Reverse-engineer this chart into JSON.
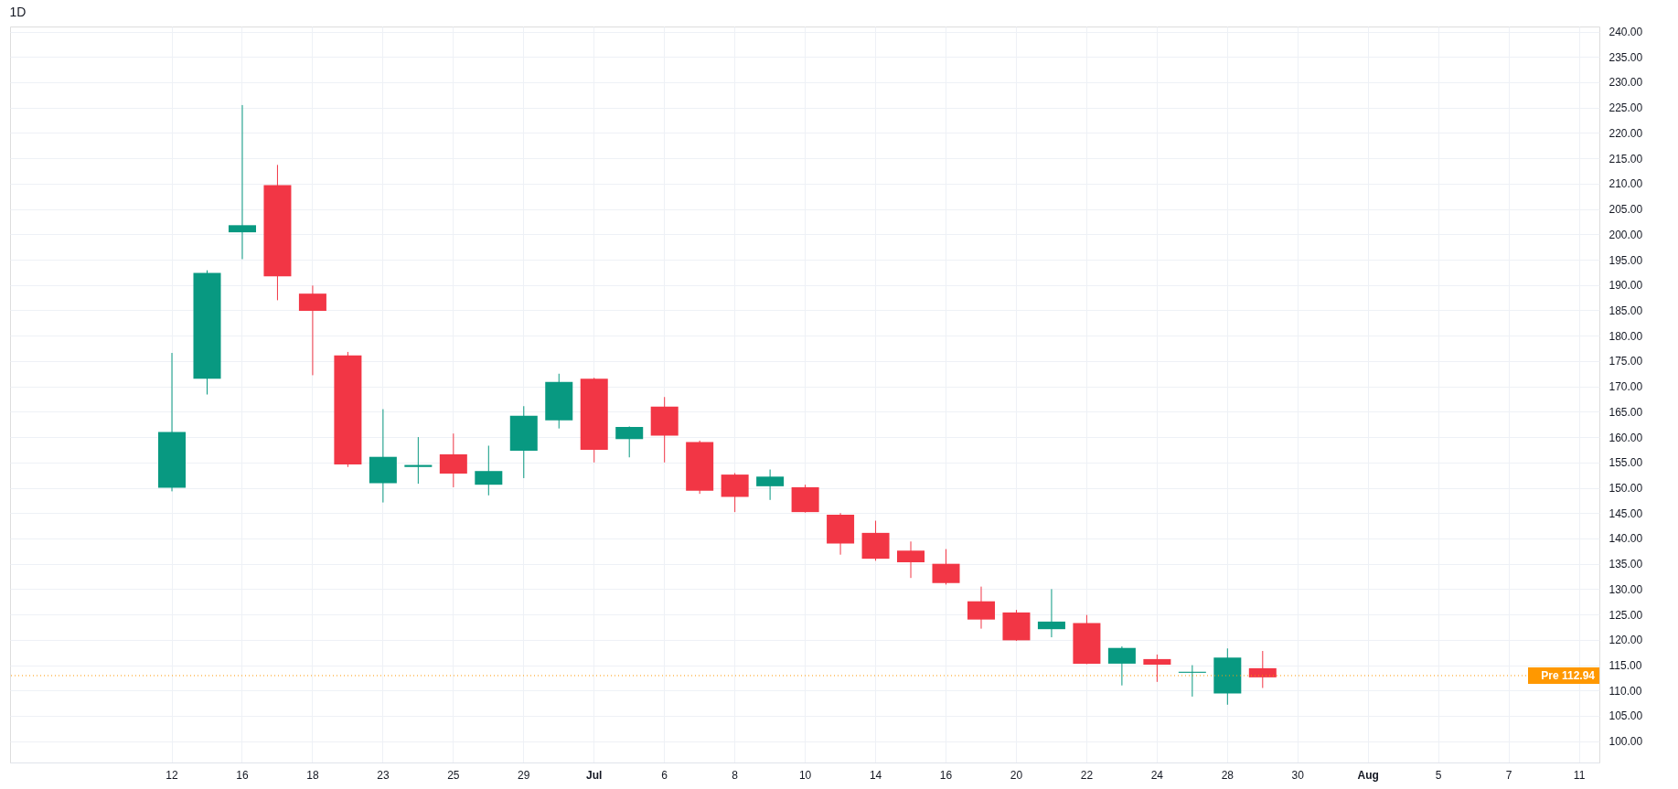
{
  "chart_data": {
    "type": "candlestick",
    "title": "1D",
    "categories": [
      "12",
      null,
      "16",
      null,
      "18",
      null,
      "23",
      null,
      "25",
      null,
      "29",
      null,
      "Jul",
      null,
      "6",
      null,
      "8",
      null,
      "10",
      null,
      "14",
      null,
      "16",
      null,
      "20",
      null,
      "22",
      null,
      "24",
      null,
      "28",
      null,
      "30",
      null,
      "Aug",
      null,
      "5",
      null,
      "7",
      null,
      "11"
    ],
    "ohlc": [
      [
        150.0,
        176.6,
        149.3,
        161.0
      ],
      [
        171.5,
        192.9,
        168.4,
        192.4
      ],
      [
        200.4,
        225.5,
        195.1,
        201.8
      ],
      [
        209.7,
        213.7,
        187.0,
        191.7
      ],
      [
        188.3,
        189.9,
        172.2,
        184.9
      ],
      [
        176.1,
        176.8,
        154.1,
        154.6
      ],
      [
        150.9,
        165.5,
        147.1,
        156.1
      ],
      [
        154.1,
        160.0,
        150.8,
        154.5
      ],
      [
        156.6,
        160.7,
        150.1,
        152.8
      ],
      [
        150.6,
        158.3,
        148.5,
        153.3
      ],
      [
        157.3,
        166.1,
        151.9,
        164.2
      ],
      [
        163.3,
        172.5,
        161.7,
        170.9
      ],
      [
        171.5,
        171.7,
        155.0,
        157.5
      ],
      [
        159.6,
        162.1,
        156.0,
        162.0
      ],
      [
        166.0,
        167.9,
        155.0,
        160.3
      ],
      [
        159.0,
        159.3,
        148.8,
        149.4
      ],
      [
        152.6,
        152.9,
        145.2,
        148.2
      ],
      [
        150.3,
        153.6,
        147.6,
        152.2
      ],
      [
        150.1,
        150.6,
        145.1,
        145.2
      ],
      [
        144.7,
        145.0,
        136.8,
        139.0
      ],
      [
        141.1,
        143.5,
        135.6,
        136.0
      ],
      [
        137.6,
        139.4,
        132.2,
        135.3
      ],
      [
        135.0,
        137.9,
        130.9,
        131.2
      ],
      [
        127.6,
        130.5,
        122.2,
        124.0
      ],
      [
        125.4,
        125.9,
        119.8,
        119.9
      ],
      [
        122.1,
        130.0,
        120.5,
        123.6
      ],
      [
        123.3,
        124.9,
        115.2,
        115.3
      ],
      [
        115.3,
        118.7,
        111.0,
        118.4
      ],
      [
        116.2,
        117.1,
        111.7,
        115.1
      ],
      [
        113.5,
        115.0,
        108.8,
        113.7
      ],
      [
        109.4,
        118.3,
        107.2,
        116.5
      ],
      [
        114.4,
        117.8,
        110.5,
        112.6
      ],
      null,
      null,
      null,
      null,
      null,
      null,
      null,
      null,
      null
    ],
    "colors": [
      "#089981",
      "#089981",
      "#089981",
      "#f23645",
      "#f23645",
      "#f23645",
      "#089981",
      "#089981",
      "#f23645",
      "#089981",
      "#089981",
      "#089981",
      "#f23645",
      "#089981",
      "#f23645",
      "#f23645",
      "#f23645",
      "#089981",
      "#f23645",
      "#f23645",
      "#f23645",
      "#f23645",
      "#f23645",
      "#f23645",
      "#f23645",
      "#089981",
      "#f23645",
      "#089981",
      "#f23645",
      "#089981",
      "#089981",
      "#f23645",
      null,
      null,
      null,
      null,
      null,
      null,
      null,
      null,
      null
    ],
    "ylim": [
      95.8,
      241.0
    ],
    "yticks": [
      {
        "value": 100,
        "label": "100.00"
      },
      {
        "value": 105,
        "label": "105.00"
      },
      {
        "value": 110,
        "label": "110.00"
      },
      {
        "value": 115,
        "label": "115.00"
      },
      {
        "value": 120,
        "label": "120.00"
      },
      {
        "value": 125,
        "label": "125.00"
      },
      {
        "value": 130,
        "label": "130.00"
      },
      {
        "value": 135,
        "label": "135.00"
      },
      {
        "value": 140,
        "label": "140.00"
      },
      {
        "value": 145,
        "label": "145.00"
      },
      {
        "value": 150,
        "label": "150.00"
      },
      {
        "value": 155,
        "label": "155.00"
      },
      {
        "value": 160,
        "label": "160.00"
      },
      {
        "value": 165,
        "label": "165.00"
      },
      {
        "value": 170,
        "label": "170.00"
      },
      {
        "value": 175,
        "label": "175.00"
      },
      {
        "value": 180,
        "label": "180.00"
      },
      {
        "value": 185,
        "label": "185.00"
      },
      {
        "value": 190,
        "label": "190.00"
      },
      {
        "value": 195,
        "label": "195.00"
      },
      {
        "value": 200,
        "label": "200.00"
      },
      {
        "value": 205,
        "label": "205.00"
      },
      {
        "value": 210,
        "label": "210.00"
      },
      {
        "value": 215,
        "label": "215.00"
      },
      {
        "value": 220,
        "label": "220.00"
      },
      {
        "value": 225,
        "label": "225.00"
      },
      {
        "value": 230,
        "label": "230.00"
      },
      {
        "value": 235,
        "label": "235.00"
      },
      {
        "value": 240,
        "label": "240.00"
      }
    ],
    "ref_lines": [
      {
        "axis": "y",
        "value": 112.94,
        "label": "Pre 112.94",
        "color": "#ff9800",
        "line_style": "dotted"
      }
    ],
    "grid": true
  }
}
